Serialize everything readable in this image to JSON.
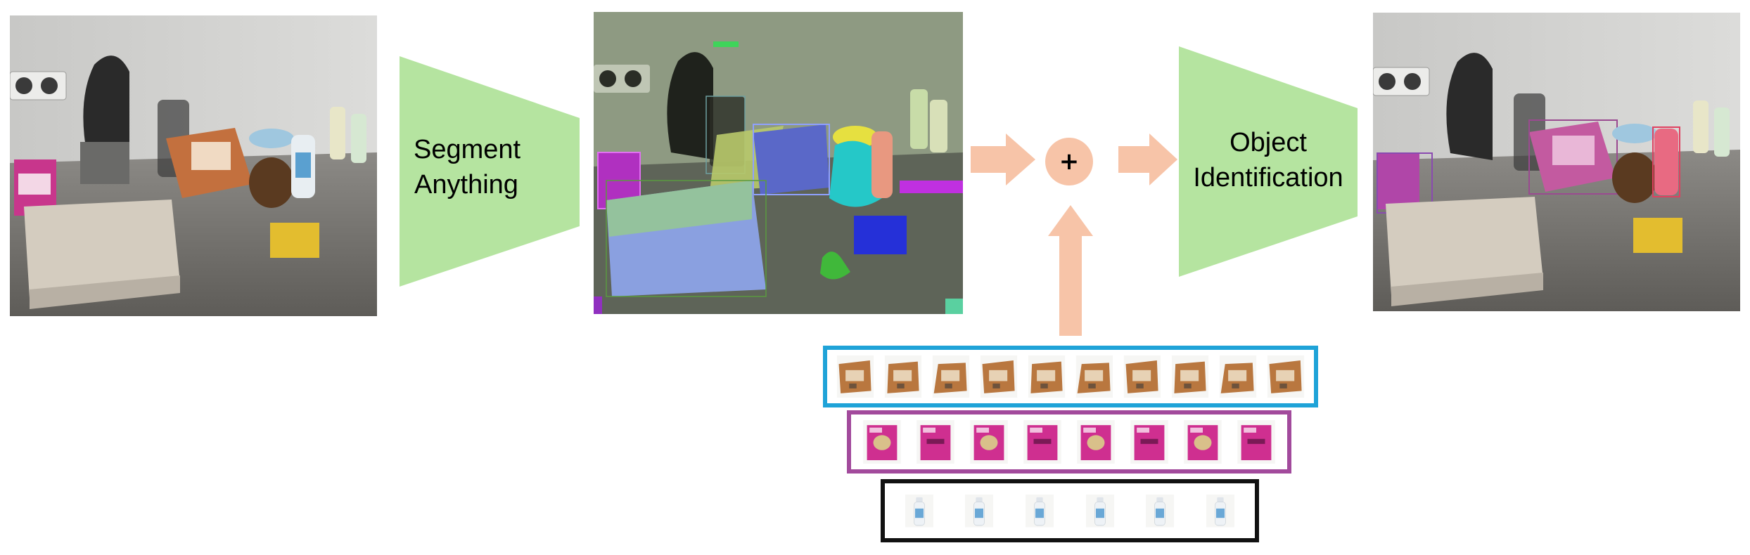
{
  "diagram": {
    "segment_block_label": "Segment Anything",
    "identify_block_label": "Object Identification",
    "combine_symbol": "+",
    "photos": {
      "input": "input-scene-photo",
      "segmented": "segmented-scene-photo",
      "output": "identified-scene-photo"
    },
    "galleries": [
      {
        "name": "coffee-filter-box-gallery",
        "border_color": "#1fa3d8",
        "item_count": 10,
        "item_kind": "coffee-filter-box"
      },
      {
        "name": "pink-tea-box-gallery",
        "border_color": "#a24a9c",
        "item_count": 8,
        "item_kind": "pink-box"
      },
      {
        "name": "spray-bottle-gallery",
        "border_color": "#111111",
        "item_count": 6,
        "item_kind": "spray-bottle"
      }
    ],
    "colors": {
      "block_fill": "#b5e4a0",
      "arrow_fill": "#f7c4a8"
    }
  }
}
